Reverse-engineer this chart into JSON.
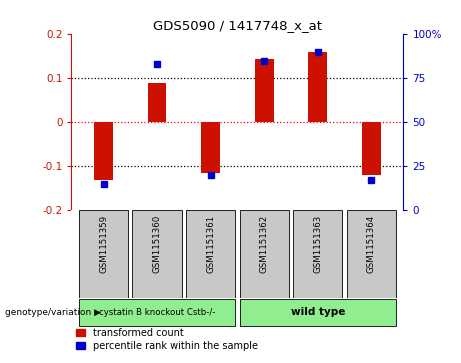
{
  "title": "GDS5090 / 1417748_x_at",
  "samples": [
    "GSM1151359",
    "GSM1151360",
    "GSM1151361",
    "GSM1151362",
    "GSM1151363",
    "GSM1151364"
  ],
  "red_values": [
    -0.13,
    0.09,
    -0.115,
    0.145,
    0.16,
    -0.12
  ],
  "blue_pct": [
    15,
    83,
    20,
    85,
    90,
    17
  ],
  "ylim": [
    -0.2,
    0.2
  ],
  "yticks_left": [
    -0.2,
    -0.1,
    0,
    0.1,
    0.2
  ],
  "yticks_right": [
    0,
    25,
    50,
    75,
    100
  ],
  "red_color": "#CC1100",
  "blue_color": "#0000CC",
  "bar_width": 0.35,
  "group_box_color": "#C8C8C8",
  "group1_label": "cystatin B knockout Cstb-/-",
  "group2_label": "wild type",
  "group_color": "#90EE90",
  "genotype_label": "genotype/variation",
  "legend_red": "transformed count",
  "legend_blue": "percentile rank within the sample"
}
